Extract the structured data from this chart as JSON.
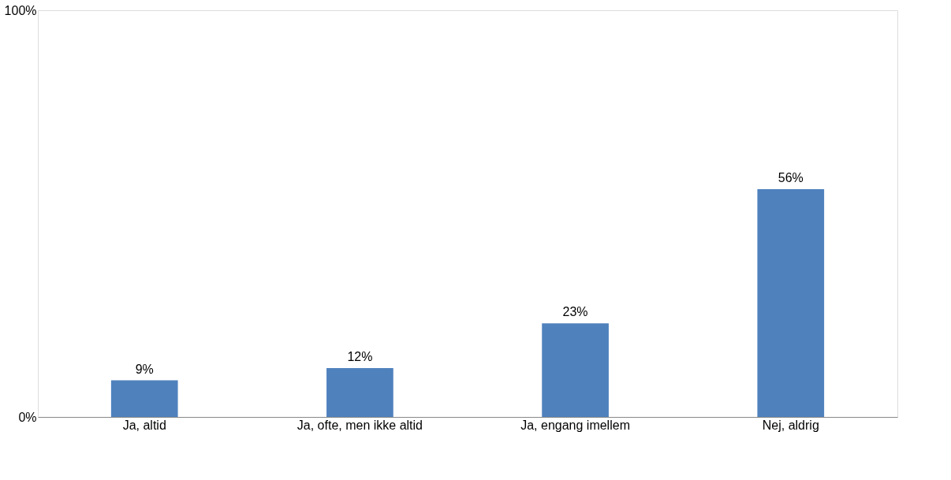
{
  "chart_data": {
    "type": "bar",
    "categories": [
      "Ja, altid",
      "Ja, ofte, men ikke altid",
      "Ja, engang imellem",
      "Nej, aldrig"
    ],
    "values": [
      9,
      12,
      23,
      56
    ],
    "value_labels": [
      "9%",
      "12%",
      "23%",
      "56%"
    ],
    "color": "#4f81bd",
    "ylim": [
      0,
      100
    ],
    "yticks": [
      {
        "value": 0,
        "label": "0%"
      },
      {
        "value": 100,
        "label": "100%"
      }
    ],
    "grid": false
  }
}
